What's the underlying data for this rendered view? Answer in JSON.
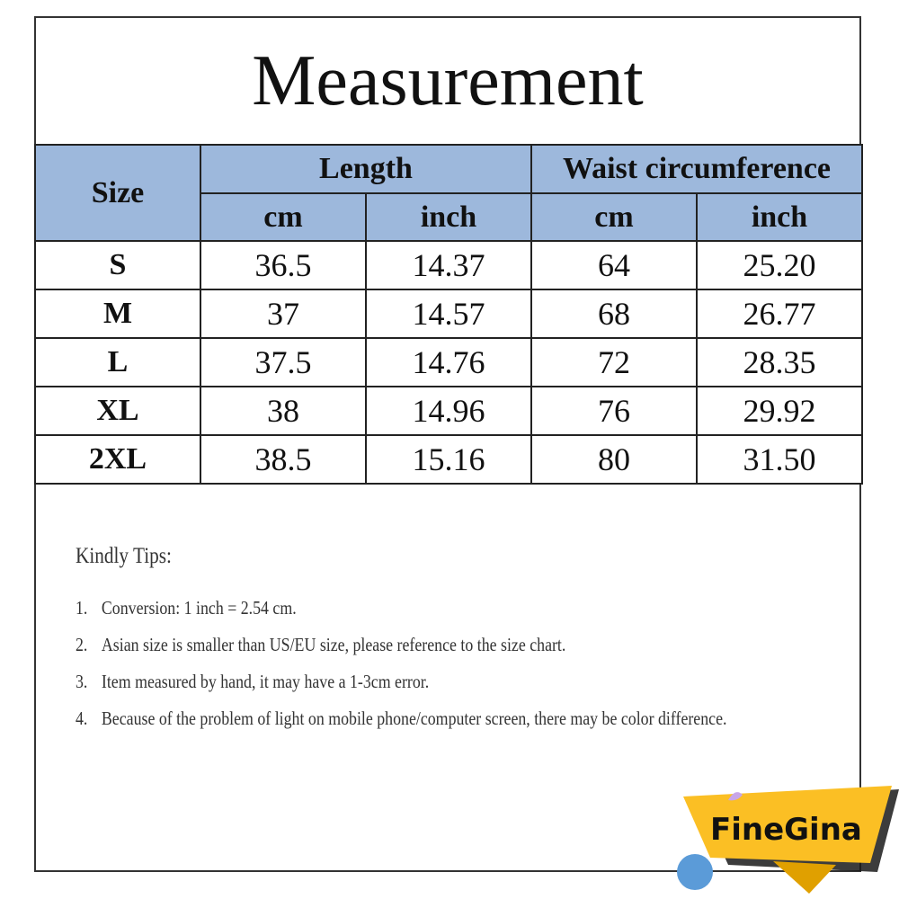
{
  "title": "Measurement",
  "table": {
    "size_header": "Size",
    "groups": [
      "Length",
      "Waist circumference"
    ],
    "units": [
      "cm",
      "inch",
      "cm",
      "inch"
    ],
    "rows": [
      [
        "S",
        "36.5",
        "14.37",
        "64",
        "25.20"
      ],
      [
        "M",
        "37",
        "14.57",
        "68",
        "26.77"
      ],
      [
        "L",
        "37.5",
        "14.76",
        "72",
        "28.35"
      ],
      [
        "XL",
        "38",
        "14.96",
        "76",
        "29.92"
      ],
      [
        "2XL",
        "38.5",
        "15.16",
        "80",
        "31.50"
      ]
    ]
  },
  "tips": {
    "heading": "Kindly Tips:",
    "items": [
      {
        "num": "1.",
        "text": "Conversion: 1 inch = 2.54 cm."
      },
      {
        "num": "2.",
        "text": "Asian size is smaller than US/EU size, please reference to the size chart."
      },
      {
        "num": "3.",
        "text": "Item measured by hand, it may have a 1-3cm error."
      },
      {
        "num": "4.",
        "text": "Because of the problem of light on mobile phone/computer screen, there may be color difference."
      }
    ]
  },
  "logo": {
    "text": "FineGina",
    "color": "#fbbf24"
  },
  "colors": {
    "header_bg": "#9db8dc"
  }
}
